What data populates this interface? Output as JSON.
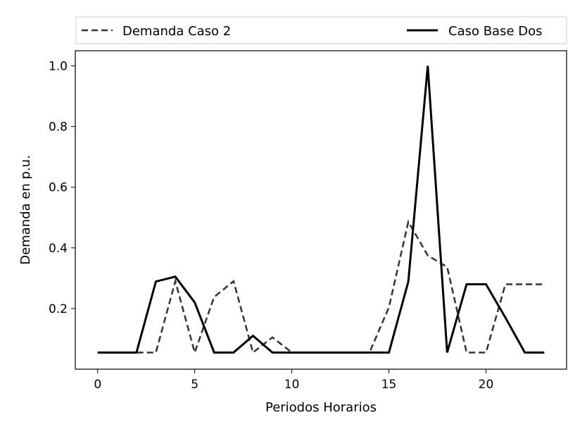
{
  "chart_data": {
    "type": "line",
    "title": "",
    "xlabel": "Periodos Horarios",
    "ylabel": "Demanda en p.u.",
    "xlim": [
      -1.15,
      24.15
    ],
    "ylim": [
      0.0,
      1.05
    ],
    "xticks": [
      0,
      5,
      10,
      15,
      20
    ],
    "yticks": [
      0.2,
      0.4,
      0.6,
      0.8,
      1.0
    ],
    "xtick_labels": [
      "0",
      "5",
      "10",
      "15",
      "20"
    ],
    "ytick_labels": [
      "0.2",
      "0.4",
      "0.6",
      "0.8",
      "1.0"
    ],
    "grid": false,
    "legend_placement": "top, outside (expanded across width)",
    "x": [
      0,
      1,
      2,
      3,
      4,
      5,
      6,
      7,
      8,
      9,
      10,
      11,
      12,
      13,
      14,
      15,
      16,
      17,
      18,
      19,
      20,
      21,
      22,
      23
    ],
    "series": [
      {
        "name": "Demanda Caso 2",
        "style": "dashed",
        "color": "#333333",
        "values": [
          0.055,
          0.055,
          0.055,
          0.055,
          0.29,
          0.055,
          0.238,
          0.29,
          0.055,
          0.105,
          0.055,
          0.055,
          0.055,
          0.055,
          0.055,
          0.204,
          0.486,
          0.375,
          0.337,
          0.055,
          0.055,
          0.28,
          0.28,
          0.28
        ]
      },
      {
        "name": "Caso Base Dos",
        "style": "solid",
        "color": "#000000",
        "values": [
          0.055,
          0.055,
          0.055,
          0.289,
          0.305,
          0.22,
          0.055,
          0.055,
          0.11,
          0.055,
          0.055,
          0.055,
          0.055,
          0.055,
          0.055,
          0.055,
          0.289,
          1.0,
          0.055,
          0.28,
          0.28,
          0.17,
          0.055,
          0.055
        ]
      }
    ]
  }
}
